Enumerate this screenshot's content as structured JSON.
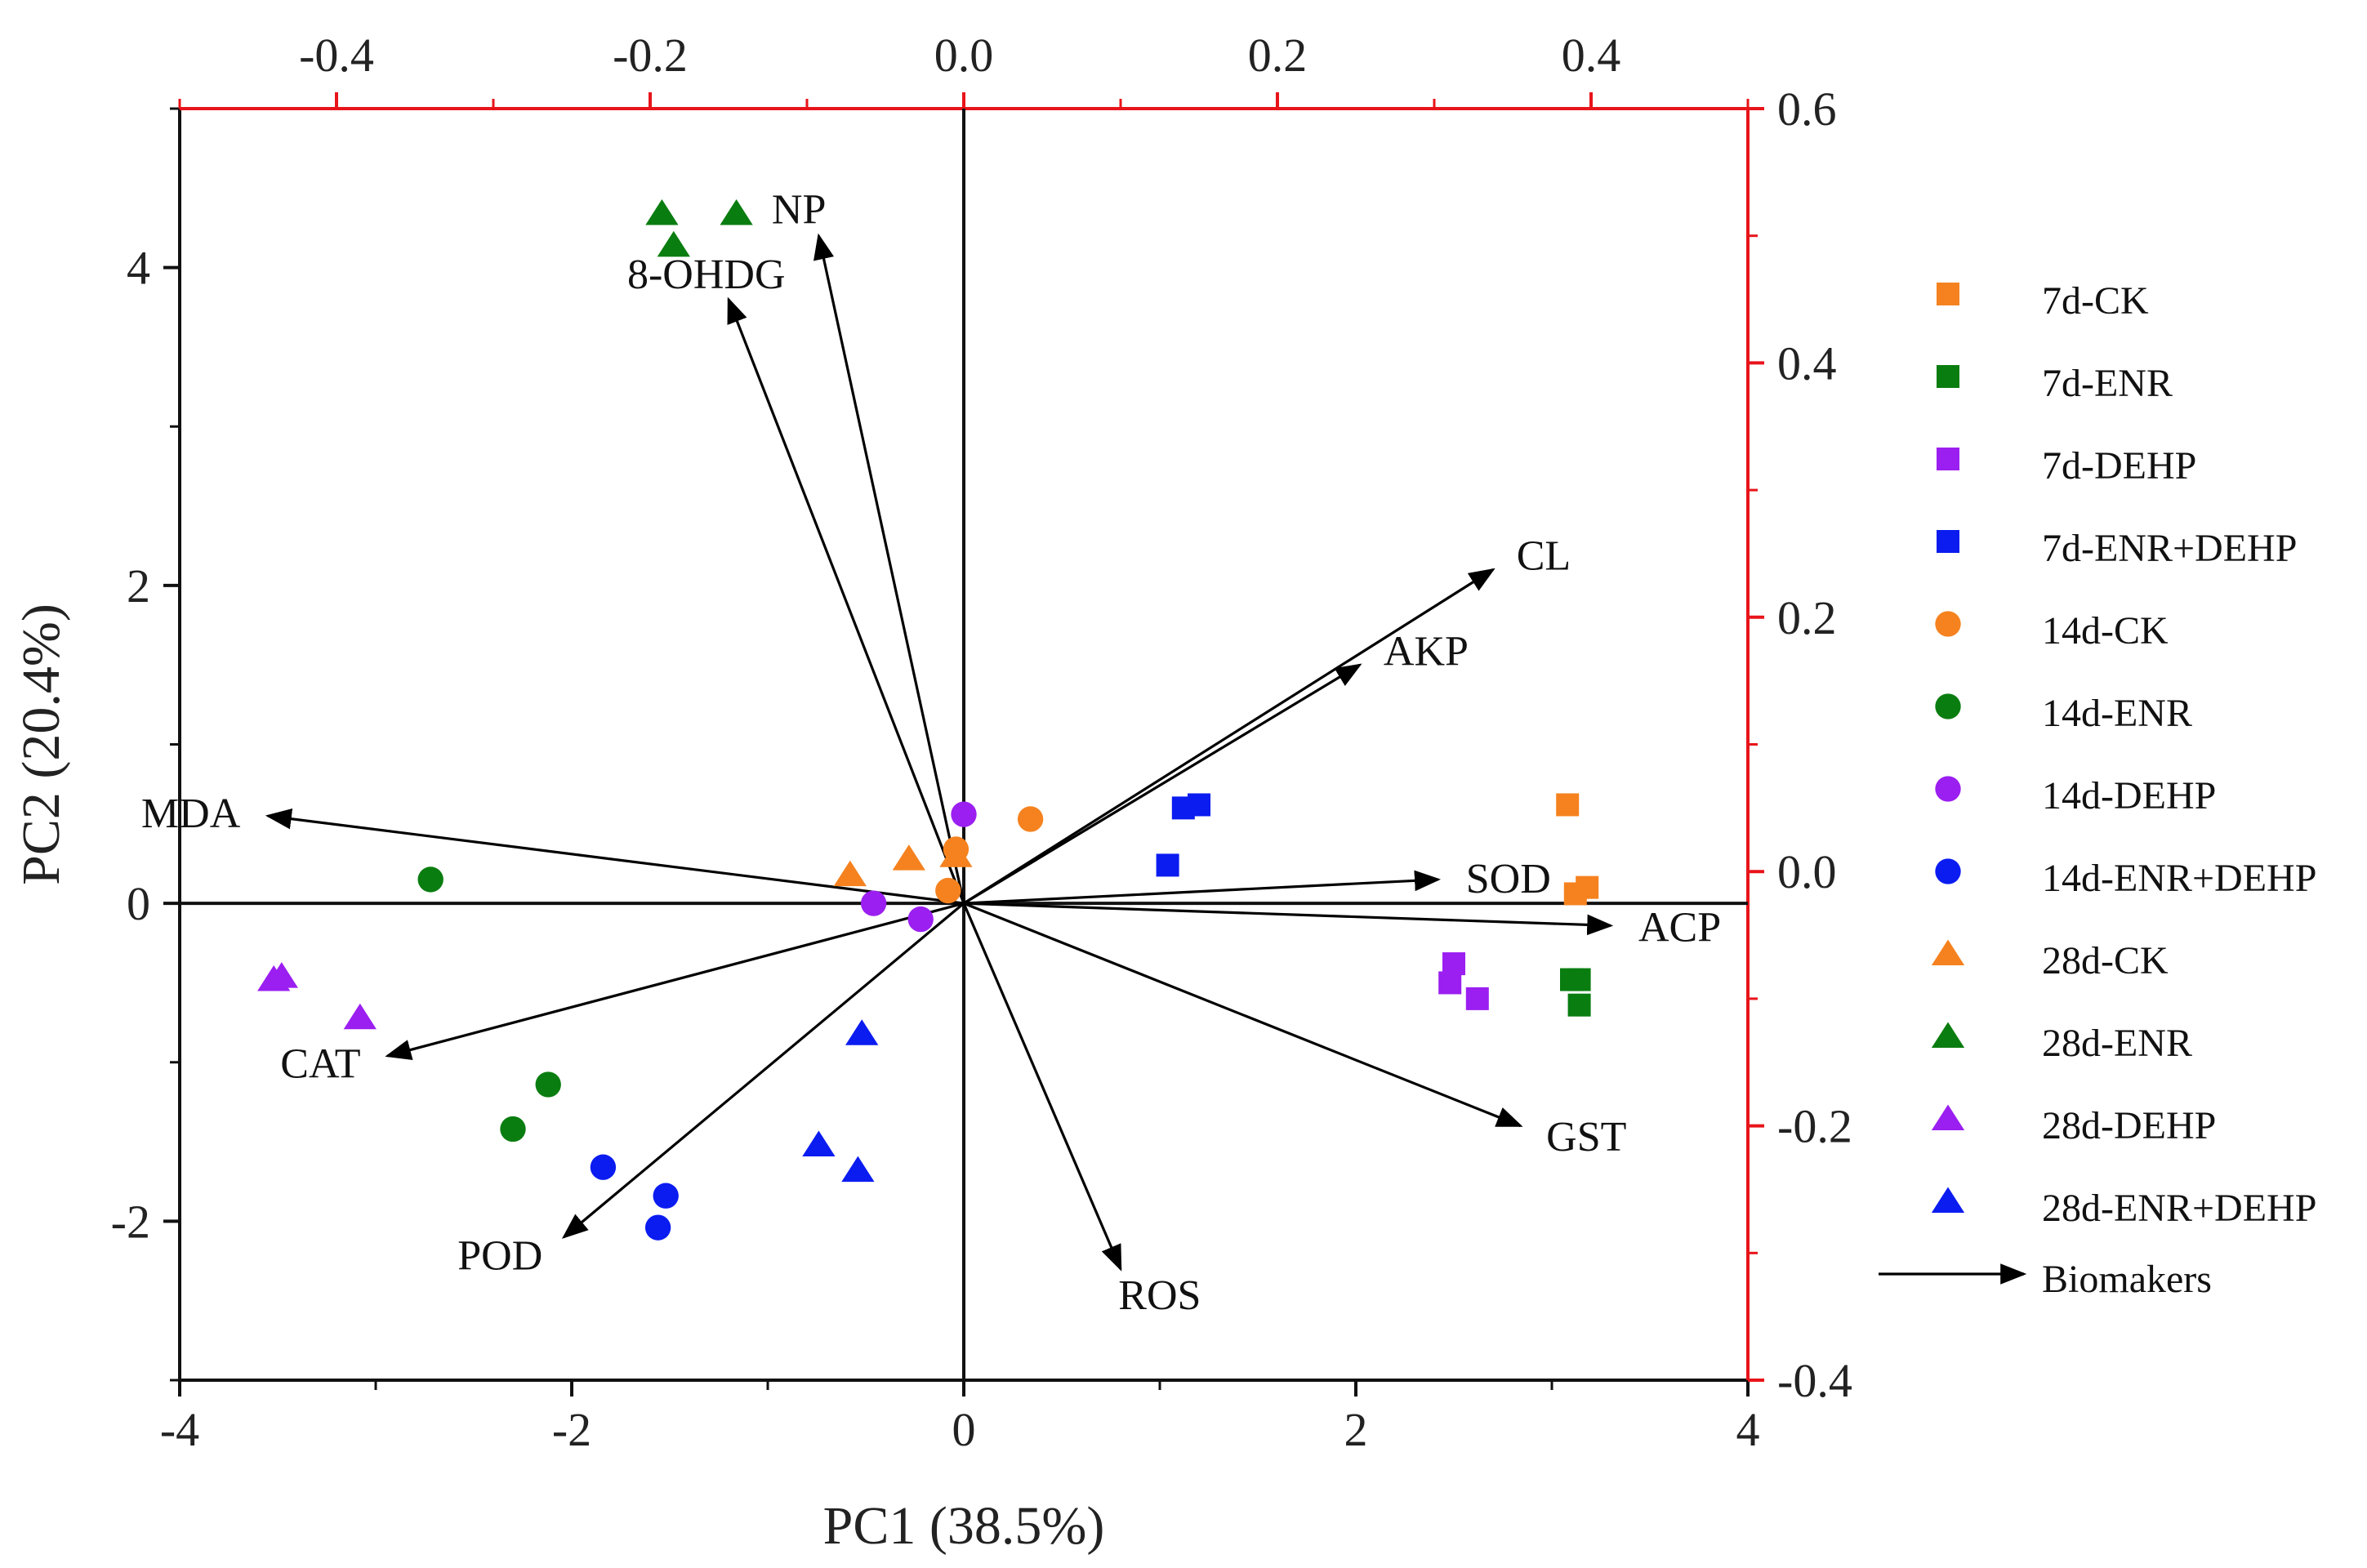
{
  "chart_data": {
    "type": "scatter",
    "subtype": "pca-biplot",
    "xlabel": "PC1 (38.5%)",
    "ylabel": "PC2 (20.4%)",
    "xlim": [
      -4,
      4
    ],
    "ylim": [
      -3,
      5
    ],
    "xticks": [
      "-4",
      "-2",
      "0",
      "2",
      "4"
    ],
    "yticks": [
      "-2",
      "0",
      "2",
      "4"
    ],
    "loading_xlim": [
      -0.5,
      0.5
    ],
    "loading_ylim": [
      -0.4,
      0.6
    ],
    "loading_xticks": [
      "-0.4",
      "-0.2",
      "0.0",
      "0.2",
      "0.4"
    ],
    "loading_yticks": [
      "-0.4",
      "-0.2",
      "0.0",
      "0.2",
      "0.4",
      "0.6"
    ],
    "grid": false,
    "legend_position": "right",
    "colors": {
      "CK": "#f5821f",
      "ENR": "#0a7d10",
      "DEHP": "#9b1ff0",
      "ENR+DEHP": "#0b1cf0",
      "secondary_axis": "#e8141a",
      "axis": "#111111"
    },
    "series": [
      {
        "name": "7d-CK",
        "color": "#f5821f",
        "marker": "square",
        "points": [
          [
            3.08,
            0.62
          ],
          [
            3.12,
            0.06
          ],
          [
            3.18,
            0.1
          ]
        ]
      },
      {
        "name": "7d-ENR",
        "color": "#0a7d10",
        "marker": "square",
        "points": [
          [
            3.1,
            -0.48
          ],
          [
            3.14,
            -0.48
          ],
          [
            3.14,
            -0.64
          ]
        ]
      },
      {
        "name": "7d-DEHP",
        "color": "#9b1ff0",
        "marker": "square",
        "points": [
          [
            2.48,
            -0.5
          ],
          [
            2.5,
            -0.38
          ],
          [
            2.62,
            -0.6
          ]
        ]
      },
      {
        "name": "7d-ENR+DEHP",
        "color": "#0b1cf0",
        "marker": "square",
        "points": [
          [
            1.04,
            0.24
          ],
          [
            1.12,
            0.6
          ],
          [
            1.2,
            0.62
          ]
        ]
      },
      {
        "name": "14d-CK",
        "color": "#f5821f",
        "marker": "circle",
        "points": [
          [
            0.34,
            0.53
          ],
          [
            -0.04,
            0.34
          ],
          [
            -0.08,
            0.08
          ]
        ]
      },
      {
        "name": "14d-ENR",
        "color": "#0a7d10",
        "marker": "circle",
        "points": [
          [
            -2.72,
            0.15
          ],
          [
            -2.12,
            -1.14
          ],
          [
            -2.3,
            -1.42
          ]
        ]
      },
      {
        "name": "14d-DEHP",
        "color": "#9b1ff0",
        "marker": "circle",
        "points": [
          [
            0.0,
            0.56
          ],
          [
            -0.46,
            0.0
          ],
          [
            -0.22,
            -0.1
          ]
        ]
      },
      {
        "name": "14d-ENR+DEHP",
        "color": "#0b1cf0",
        "marker": "circle",
        "points": [
          [
            -1.84,
            -1.66
          ],
          [
            -1.52,
            -1.84
          ],
          [
            -1.56,
            -2.04
          ]
        ]
      },
      {
        "name": "28d-CK",
        "color": "#f5821f",
        "marker": "triangle",
        "points": [
          [
            -0.58,
            0.18
          ],
          [
            -0.28,
            0.28
          ],
          [
            -0.04,
            0.3
          ]
        ]
      },
      {
        "name": "28d-ENR",
        "color": "#0a7d10",
        "marker": "triangle",
        "points": [
          [
            -1.54,
            4.34
          ],
          [
            -1.48,
            4.14
          ],
          [
            -1.16,
            4.34
          ]
        ]
      },
      {
        "name": "28d-DEHP",
        "color": "#9b1ff0",
        "marker": "triangle",
        "points": [
          [
            -3.52,
            -0.48
          ],
          [
            -3.48,
            -0.46
          ],
          [
            -3.08,
            -0.72
          ]
        ]
      },
      {
        "name": "28d-ENR+DEHP",
        "color": "#0b1cf0",
        "marker": "triangle",
        "points": [
          [
            -0.52,
            -0.82
          ],
          [
            -0.74,
            -1.52
          ],
          [
            -0.54,
            -1.68
          ]
        ]
      }
    ],
    "vectors_legend": "Biomakers",
    "vectors": [
      {
        "name": "NP",
        "x": -0.74,
        "y": 4.2
      },
      {
        "name": "8-OHDG",
        "x": -1.2,
        "y": 3.8
      },
      {
        "name": "CL",
        "x": 2.7,
        "y": 2.1
      },
      {
        "name": "AKP",
        "x": 2.02,
        "y": 1.5
      },
      {
        "name": "MDA",
        "x": -3.55,
        "y": 0.55
      },
      {
        "name": "SOD",
        "x": 2.42,
        "y": 0.15
      },
      {
        "name": "ACP",
        "x": 3.3,
        "y": -0.14
      },
      {
        "name": "CAT",
        "x": -2.94,
        "y": -0.96
      },
      {
        "name": "GST",
        "x": 2.84,
        "y": -1.4
      },
      {
        "name": "POD",
        "x": -2.04,
        "y": -2.1
      },
      {
        "name": "ROS",
        "x": 0.8,
        "y": -2.3
      }
    ]
  }
}
